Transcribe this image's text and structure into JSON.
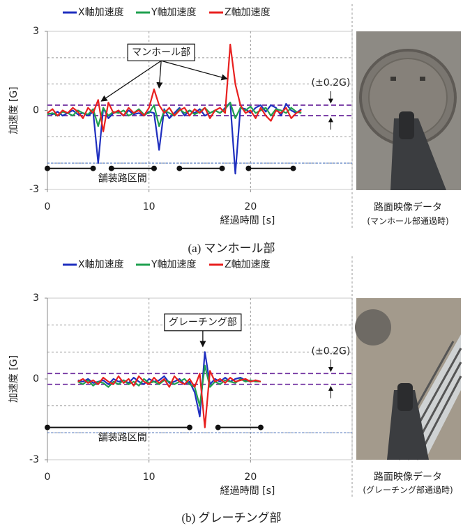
{
  "chart_data": [
    {
      "type": "line",
      "ylabel": "加速度 [G]",
      "xlabel": "経過時間 [s]",
      "xlim": [
        0,
        30
      ],
      "xticks": [
        0,
        10,
        20
      ],
      "xgrid": [
        10,
        20
      ],
      "ylim": [
        -3,
        3
      ],
      "yticks": [
        -3,
        0,
        3
      ],
      "ygrid": [
        -2,
        -1,
        1,
        2
      ],
      "x": [
        0,
        0.5,
        1,
        1.5,
        2,
        2.5,
        3,
        3.5,
        4,
        4.5,
        5,
        5.5,
        6,
        6.5,
        7,
        7.5,
        8,
        8.5,
        9,
        9.5,
        10,
        10.5,
        11,
        11.5,
        12,
        12.5,
        13,
        13.5,
        14,
        14.5,
        15,
        15.5,
        16,
        16.5,
        17,
        17.5,
        18,
        18.5,
        19,
        19.5,
        20,
        20.5,
        21,
        21.5,
        22,
        22.5,
        23,
        23.5,
        24,
        24.5,
        25
      ],
      "series": [
        {
          "name": "X軸加速度",
          "color": "#1f2fbf",
          "values": [
            -0.1,
            -0.15,
            -0.05,
            -0.2,
            -0.1,
            0.0,
            -0.15,
            -0.1,
            -0.2,
            -0.05,
            -2.0,
            0.1,
            -0.3,
            -0.1,
            -0.05,
            -0.2,
            0.0,
            -0.15,
            -0.1,
            -0.2,
            -0.05,
            -0.1,
            -1.5,
            0.05,
            -0.3,
            -0.1,
            0.1,
            -0.2,
            0.0,
            -0.1,
            0.05,
            -0.2,
            -0.1,
            0.0,
            -0.1,
            0.1,
            0.3,
            -2.4,
            0.1,
            0.05,
            -0.1,
            0.1,
            0.2,
            -0.05,
            0.2,
            0.1,
            -0.2,
            0.25,
            0.0,
            -0.1,
            0.05
          ]
        },
        {
          "name": "Y軸加速度",
          "color": "#1fa04f",
          "values": [
            -0.15,
            -0.1,
            -0.2,
            -0.05,
            -0.1,
            -0.2,
            0.0,
            -0.1,
            -0.15,
            0.05,
            -0.6,
            0.1,
            -0.2,
            -0.05,
            -0.1,
            0.0,
            -0.2,
            -0.1,
            0.05,
            -0.15,
            -0.1,
            0.2,
            -0.6,
            0.0,
            -0.1,
            -0.2,
            0.05,
            -0.1,
            0.0,
            -0.15,
            -0.05,
            0.1,
            -0.1,
            0.0,
            -0.1,
            0.05,
            0.3,
            -0.3,
            0.1,
            0.0,
            0.15,
            -0.1,
            0.0,
            0.1,
            -0.2,
            0.05,
            0.0,
            -0.1,
            0.1,
            -0.05,
            -0.1
          ]
        },
        {
          "name": "Z軸加速度",
          "color": "#e8201f",
          "values": [
            -0.1,
            0.05,
            -0.2,
            0.0,
            -0.1,
            0.1,
            -0.05,
            -0.3,
            0.1,
            -0.1,
            0.4,
            -0.8,
            0.3,
            -0.1,
            0.0,
            -0.2,
            0.1,
            -0.1,
            0.0,
            -0.2,
            0.1,
            0.8,
            0.2,
            -0.1,
            0.1,
            -0.2,
            0.0,
            0.1,
            -0.2,
            0.05,
            -0.1,
            0.1,
            -0.3,
            0.0,
            0.1,
            -0.1,
            2.5,
            1.0,
            0.2,
            -0.1,
            0.0,
            -0.3,
            0.1,
            -0.2,
            -0.4,
            0.0,
            -0.1,
            0.1,
            -0.3,
            -0.1,
            0.0
          ]
        }
      ],
      "thresholds": [
        0.2,
        -0.2
      ],
      "threshold_color": "#7030a0",
      "threshold_label": "(±0.2G)",
      "ref_lines": [
        {
          "value": -2,
          "color": "#4472c4"
        }
      ],
      "paved_sections": {
        "label": "舗装路区間",
        "y": -2.2,
        "ranges": [
          [
            0,
            4.5
          ],
          [
            6.3,
            10.5
          ],
          [
            13,
            17.2
          ],
          [
            19.8,
            24.2
          ]
        ]
      },
      "annotation": {
        "text": "マンホール部",
        "at": [
          11.2,
          2.2
        ],
        "targets": [
          [
            5.3,
            0.35
          ],
          [
            11,
            0.85
          ],
          [
            17.7,
            1.2
          ]
        ]
      },
      "photo_caption": [
        "路面映像データ",
        "(マンホール部通過時)"
      ],
      "figure_caption": "(a)  マンホール部"
    },
    {
      "type": "line",
      "ylabel": "加速度 [G]",
      "xlabel": "経過時間 [s]",
      "xlim": [
        0,
        30
      ],
      "xticks": [
        0,
        10,
        20
      ],
      "xgrid": [
        10,
        20
      ],
      "ylim": [
        -3,
        3
      ],
      "yticks": [
        -3,
        0,
        3
      ],
      "ygrid": [
        -2,
        -1,
        1,
        2
      ],
      "x": [
        3,
        3.5,
        4,
        4.5,
        5,
        5.5,
        6,
        6.5,
        7,
        7.5,
        8,
        8.5,
        9,
        9.5,
        10,
        10.5,
        11,
        11.5,
        12,
        12.5,
        13,
        13.5,
        14,
        14.5,
        15,
        15.5,
        16,
        16.5,
        17,
        17.5,
        18,
        18.5,
        19,
        19.5,
        20,
        20.5,
        21
      ],
      "series": [
        {
          "name": "X軸加速度",
          "color": "#1f2fbf",
          "values": [
            -0.05,
            -0.1,
            0.0,
            -0.15,
            -0.1,
            -0.05,
            -0.2,
            0.0,
            -0.1,
            -0.05,
            -0.15,
            0.05,
            -0.1,
            -0.2,
            0.0,
            -0.1,
            -0.05,
            0.1,
            -0.15,
            -0.1,
            0.0,
            -0.2,
            -0.1,
            -0.5,
            -1.4,
            1.0,
            -0.2,
            0.0,
            -0.1,
            0.05,
            -0.1,
            0.0,
            0.05,
            -0.05,
            -0.1,
            -0.05,
            -0.1
          ]
        },
        {
          "name": "Y軸加速度",
          "color": "#1fa04f",
          "values": [
            -0.1,
            -0.2,
            -0.05,
            -0.25,
            -0.1,
            -0.15,
            -0.3,
            -0.1,
            -0.2,
            -0.05,
            -0.2,
            -0.1,
            -0.25,
            0.0,
            -0.15,
            -0.1,
            -0.2,
            -0.05,
            -0.1,
            -0.2,
            -0.1,
            0.0,
            -0.2,
            -0.3,
            -1.0,
            0.5,
            -0.3,
            -0.1,
            -0.2,
            -0.05,
            -0.1,
            -0.15,
            0.0,
            -0.1,
            -0.05,
            -0.1,
            -0.1
          ]
        },
        {
          "name": "Z軸加速度",
          "color": "#e8201f",
          "values": [
            -0.1,
            0.0,
            -0.15,
            -0.05,
            -0.2,
            0.05,
            -0.1,
            -0.2,
            0.1,
            -0.15,
            0.0,
            -0.25,
            0.1,
            -0.1,
            -0.2,
            0.05,
            -0.15,
            0.0,
            -0.3,
            0.1,
            -0.1,
            -0.2,
            0.0,
            -0.3,
            0.2,
            -1.8,
            0.3,
            -0.1,
            0.0,
            -0.15,
            0.05,
            -0.1,
            -0.05,
            0.0,
            -0.1,
            -0.05,
            -0.1
          ]
        }
      ],
      "thresholds": [
        0.2,
        -0.2
      ],
      "threshold_color": "#7030a0",
      "threshold_label": "(±0.2G)",
      "ref_lines": [
        {
          "value": -2,
          "color": "#4472c4"
        }
      ],
      "paved_sections": {
        "label": "舗装路区間",
        "y": -1.8,
        "ranges": [
          [
            0,
            14
          ],
          [
            16.8,
            21
          ]
        ]
      },
      "annotation": {
        "text": "グレーチング部",
        "at": [
          15.3,
          2.1
        ],
        "targets": [
          [
            15.3,
            1.2
          ]
        ]
      },
      "photo_caption": [
        "路面映像データ",
        "(グレーチング部通過時)"
      ],
      "figure_caption": "(b)  グレーチング部"
    }
  ]
}
